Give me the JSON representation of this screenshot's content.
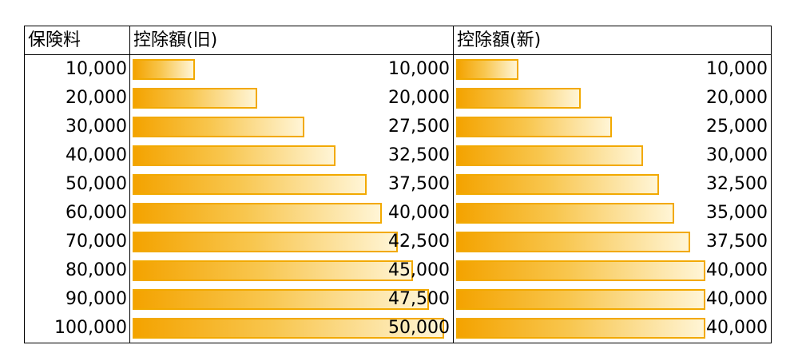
{
  "chart_data": {
    "type": "table",
    "columns": [
      "保険料",
      "控除額(旧)",
      "控除額(新)"
    ],
    "rows": [
      {
        "premium": "10,000",
        "old": 10000,
        "old_label": "10,000",
        "new": 10000,
        "new_label": "10,000"
      },
      {
        "premium": "20,000",
        "old": 20000,
        "old_label": "20,000",
        "new": 20000,
        "new_label": "20,000"
      },
      {
        "premium": "30,000",
        "old": 27500,
        "old_label": "27,500",
        "new": 25000,
        "new_label": "25,000"
      },
      {
        "premium": "40,000",
        "old": 32500,
        "old_label": "32,500",
        "new": 30000,
        "new_label": "30,000"
      },
      {
        "premium": "50,000",
        "old": 37500,
        "old_label": "37,500",
        "new": 32500,
        "new_label": "32,500"
      },
      {
        "premium": "60,000",
        "old": 40000,
        "old_label": "40,000",
        "new": 35000,
        "new_label": "35,000"
      },
      {
        "premium": "70,000",
        "old": 42500,
        "old_label": "42,500",
        "new": 37500,
        "new_label": "37,500"
      },
      {
        "premium": "80,000",
        "old": 45000,
        "old_label": "45,000",
        "new": 40000,
        "new_label": "40,000"
      },
      {
        "premium": "90,000",
        "old": 47500,
        "old_label": "47,500",
        "new": 40000,
        "new_label": "40,000"
      },
      {
        "premium": "100,000",
        "old": 50000,
        "old_label": "50,000",
        "new": 40000,
        "new_label": "40,000"
      }
    ],
    "bar_max": 50000,
    "colors": {
      "bar_fill_start": "#f4a300",
      "bar_fill_end": "#fff5d6",
      "bar_border": "#f2a900"
    }
  }
}
